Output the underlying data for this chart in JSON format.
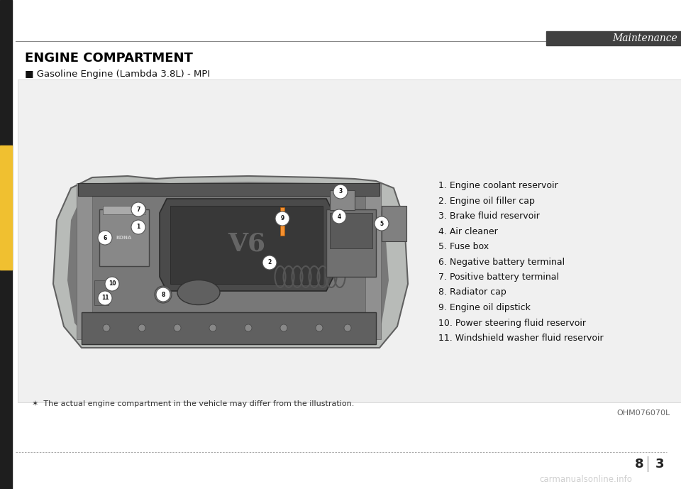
{
  "page_bg": "#ffffff",
  "left_bar_color": "#1e1e1e",
  "header_text": "Maintenance",
  "header_text_color": "#ffffff",
  "header_bar_color": "#404040",
  "section_title": "ENGINE COMPARTMENT",
  "section_title_color": "#000000",
  "subsection_marker": "■",
  "subsection_text": "Gasoline Engine (Lambda 3.8L) - MPI",
  "subsection_color": "#111111",
  "content_box_bg": "#f0f0f0",
  "content_box_border": "#cccccc",
  "parts_list": [
    "1. Engine coolant reservoir",
    "2. Engine oil filler cap",
    "3. Brake fluid reservoir",
    "4. Air cleaner",
    "5. Fuse box",
    "6. Negative battery terminal",
    "7. Positive battery terminal",
    "8. Radiator cap",
    "9. Engine oil dipstick",
    "10. Power steering fluid reservoir",
    "11. Windshield washer fluid reservoir"
  ],
  "parts_list_color": "#111111",
  "footnote_symbol": "✶",
  "footnote_text": "The actual engine compartment in the vehicle may differ from the illustration.",
  "footnote_color": "#333333",
  "image_code": "OHM076070L",
  "image_code_color": "#666666",
  "dotted_line_color": "#999999",
  "watermark_text": "carmanualsonline.info",
  "watermark_color": "#bbbbbb",
  "left_yellow_bar_color": "#f0c030",
  "engine_bg": "#d8d8d8",
  "engine_body_color": "#808080",
  "engine_dark": "#404040",
  "engine_mid": "#606060",
  "engine_light": "#a0a0a0"
}
